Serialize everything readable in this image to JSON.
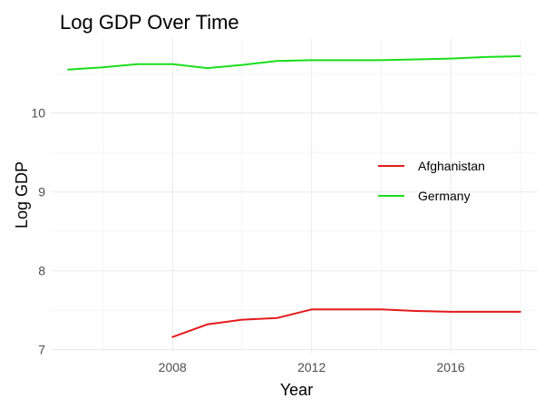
{
  "chart_data": {
    "type": "line",
    "title": "Log GDP Over Time",
    "xlabel": "Year",
    "ylabel": "Log GDP",
    "xlim": [
      2004.5,
      2018.5
    ],
    "ylim": [
      6.95,
      10.95
    ],
    "x_ticks": [
      2008,
      2012,
      2016
    ],
    "x_tick_labels": [
      "2008",
      "2012",
      "2016"
    ],
    "x_minor_ticks": [
      2006,
      2010,
      2014,
      2018
    ],
    "y_ticks": [
      7,
      8,
      9,
      10
    ],
    "y_tick_labels": [
      "7",
      "8",
      "9",
      "10"
    ],
    "y_minor_ticks": [
      7.5,
      8.5,
      9.5,
      10.5
    ],
    "grid": true,
    "legend_position": "right",
    "series": [
      {
        "name": "Afghanistan",
        "color": "#e41a1c",
        "x": [
          2008,
          2009,
          2010,
          2011,
          2012,
          2013,
          2014,
          2015,
          2016,
          2017,
          2018
        ],
        "values": [
          7.16,
          7.32,
          7.38,
          7.4,
          7.51,
          7.51,
          7.51,
          7.49,
          7.48,
          7.48,
          7.48
        ]
      },
      {
        "name": "Germany",
        "color": "#1bdd1b",
        "x": [
          2005,
          2006,
          2007,
          2008,
          2009,
          2010,
          2011,
          2012,
          2013,
          2014,
          2015,
          2016,
          2017,
          2018
        ],
        "values": [
          10.55,
          10.58,
          10.62,
          10.62,
          10.57,
          10.61,
          10.66,
          10.67,
          10.67,
          10.67,
          10.68,
          10.69,
          10.71,
          10.72
        ]
      }
    ]
  }
}
